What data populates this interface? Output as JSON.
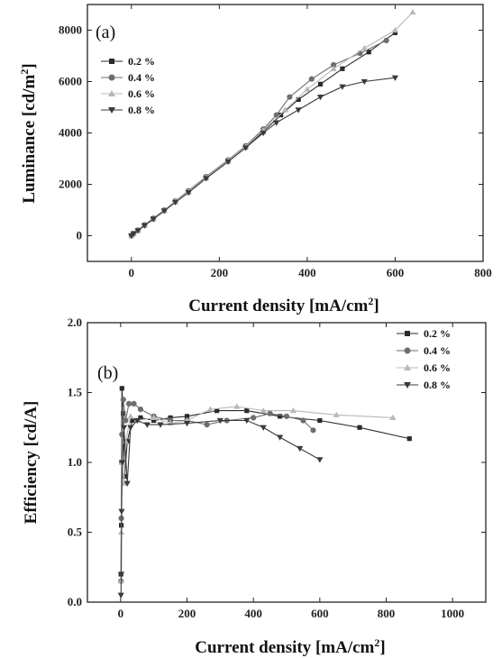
{
  "colors": {
    "0.2 %": "#2a2a2a",
    "0.4 %": "#6e6e6e",
    "0.6 %": "#b8b8b8",
    "0.8 %": "#3a3a3a"
  },
  "markers": {
    "0.2 %": "square",
    "0.4 %": "circle",
    "0.6 %": "triangle-up",
    "0.8 %": "triangle-down"
  },
  "chart_data": [
    {
      "type": "line",
      "panel_label": "(a)",
      "xlabel": "Current density [mA/cm",
      "xlabel_sup": "2",
      "xlabel_end": "]",
      "ylabel": "Luminance [cd/m",
      "ylabel_sup": "2",
      "ylabel_end": "]",
      "xlim": [
        -100,
        800
      ],
      "ylim": [
        -1000,
        9000
      ],
      "xticks": [
        0,
        200,
        400,
        600,
        800
      ],
      "yticks": [
        0,
        2000,
        4000,
        6000,
        8000
      ],
      "xtick_labels": [
        "0",
        "200",
        "400",
        "600",
        "800"
      ],
      "ytick_labels": [
        "0",
        "2000",
        "4000",
        "6000",
        "8000"
      ],
      "legend_position": "top-left",
      "series": [
        {
          "name": "0.2 %",
          "points": [
            [
              0,
              0
            ],
            [
              5,
              80
            ],
            [
              15,
              200
            ],
            [
              30,
              400
            ],
            [
              50,
              650
            ],
            [
              75,
              980
            ],
            [
              100,
              1320
            ],
            [
              130,
              1700
            ],
            [
              170,
              2250
            ],
            [
              220,
              2900
            ],
            [
              260,
              3450
            ],
            [
              300,
              4050
            ],
            [
              340,
              4700
            ],
            [
              380,
              5300
            ],
            [
              430,
              5900
            ],
            [
              480,
              6500
            ],
            [
              540,
              7150
            ],
            [
              600,
              7900
            ]
          ]
        },
        {
          "name": "0.4 %",
          "points": [
            [
              0,
              0
            ],
            [
              5,
              90
            ],
            [
              15,
              220
            ],
            [
              30,
              420
            ],
            [
              50,
              680
            ],
            [
              75,
              1000
            ],
            [
              100,
              1350
            ],
            [
              130,
              1750
            ],
            [
              170,
              2300
            ],
            [
              220,
              2950
            ],
            [
              260,
              3500
            ],
            [
              300,
              4150
            ],
            [
              330,
              4700
            ],
            [
              360,
              5400
            ],
            [
              410,
              6100
            ],
            [
              460,
              6650
            ],
            [
              520,
              7100
            ],
            [
              580,
              7600
            ]
          ]
        },
        {
          "name": "0.6 %",
          "points": [
            [
              0,
              0
            ],
            [
              5,
              90
            ],
            [
              15,
              210
            ],
            [
              30,
              410
            ],
            [
              50,
              660
            ],
            [
              75,
              990
            ],
            [
              100,
              1330
            ],
            [
              130,
              1720
            ],
            [
              170,
              2270
            ],
            [
              220,
              2920
            ],
            [
              260,
              3470
            ],
            [
              300,
              4100
            ],
            [
              350,
              4900
            ],
            [
              400,
              5700
            ],
            [
              460,
              6500
            ],
            [
              530,
              7300
            ],
            [
              600,
              8000
            ],
            [
              640,
              8700
            ]
          ]
        },
        {
          "name": "0.8 %",
          "points": [
            [
              0,
              0
            ],
            [
              5,
              80
            ],
            [
              15,
              200
            ],
            [
              30,
              400
            ],
            [
              50,
              650
            ],
            [
              75,
              970
            ],
            [
              100,
              1300
            ],
            [
              130,
              1680
            ],
            [
              170,
              2230
            ],
            [
              220,
              2880
            ],
            [
              260,
              3420
            ],
            [
              300,
              4000
            ],
            [
              330,
              4400
            ],
            [
              380,
              4900
            ],
            [
              430,
              5400
            ],
            [
              480,
              5800
            ],
            [
              530,
              6000
            ],
            [
              600,
              6150
            ]
          ]
        }
      ]
    },
    {
      "type": "line",
      "panel_label": "(b)",
      "xlabel": "Current density [mA/cm",
      "xlabel_sup": "2",
      "xlabel_end": "]",
      "ylabel": "Efficiency [cd/A]",
      "ylabel_sup": "",
      "ylabel_end": "",
      "xlim": [
        -100,
        1100
      ],
      "ylim": [
        0.0,
        2.0
      ],
      "xticks": [
        0,
        200,
        400,
        600,
        800,
        1000
      ],
      "yticks": [
        0.0,
        0.5,
        1.0,
        1.5,
        2.0
      ],
      "xtick_labels": [
        "0",
        "200",
        "400",
        "600",
        "800",
        "1000"
      ],
      "ytick_labels": [
        "0.0",
        "0.5",
        "1.0",
        "1.5",
        "2.0"
      ],
      "legend_position": "top-right",
      "series": [
        {
          "name": "0.2 %",
          "points": [
            [
              1,
              0.2
            ],
            [
              2,
              0.55
            ],
            [
              3,
              1.0
            ],
            [
              4,
              1.53
            ],
            [
              8,
              1.35
            ],
            [
              12,
              0.9
            ],
            [
              20,
              1.15
            ],
            [
              35,
              1.3
            ],
            [
              60,
              1.32
            ],
            [
              100,
              1.3
            ],
            [
              150,
              1.32
            ],
            [
              200,
              1.33
            ],
            [
              290,
              1.37
            ],
            [
              380,
              1.37
            ],
            [
              480,
              1.33
            ],
            [
              600,
              1.3
            ],
            [
              720,
              1.25
            ],
            [
              870,
              1.17
            ]
          ]
        },
        {
          "name": "0.4 %",
          "points": [
            [
              1,
              0.15
            ],
            [
              2,
              0.6
            ],
            [
              4,
              1.2
            ],
            [
              8,
              1.45
            ],
            [
              15,
              1.3
            ],
            [
              25,
              1.42
            ],
            [
              40,
              1.42
            ],
            [
              60,
              1.38
            ],
            [
              100,
              1.33
            ],
            [
              150,
              1.3
            ],
            [
              200,
              1.3
            ],
            [
              260,
              1.27
            ],
            [
              320,
              1.3
            ],
            [
              400,
              1.32
            ],
            [
              450,
              1.35
            ],
            [
              500,
              1.33
            ],
            [
              550,
              1.3
            ],
            [
              580,
              1.23
            ]
          ]
        },
        {
          "name": "0.6 %",
          "points": [
            [
              1,
              0.15
            ],
            [
              2,
              0.5
            ],
            [
              4,
              1.0
            ],
            [
              10,
              0.85
            ],
            [
              15,
              1.15
            ],
            [
              30,
              1.33
            ],
            [
              50,
              1.3
            ],
            [
              100,
              1.32
            ],
            [
              150,
              1.28
            ],
            [
              200,
              1.3
            ],
            [
              270,
              1.38
            ],
            [
              350,
              1.4
            ],
            [
              430,
              1.37
            ],
            [
              520,
              1.37
            ],
            [
              650,
              1.34
            ],
            [
              820,
              1.32
            ]
          ]
        },
        {
          "name": "0.8 %",
          "points": [
            [
              1,
              0.05
            ],
            [
              2,
              0.2
            ],
            [
              3,
              0.65
            ],
            [
              5,
              1.0
            ],
            [
              10,
              1.25
            ],
            [
              20,
              0.85
            ],
            [
              30,
              1.25
            ],
            [
              50,
              1.3
            ],
            [
              80,
              1.27
            ],
            [
              120,
              1.27
            ],
            [
              200,
              1.28
            ],
            [
              300,
              1.3
            ],
            [
              380,
              1.3
            ],
            [
              430,
              1.25
            ],
            [
              480,
              1.18
            ],
            [
              540,
              1.1
            ],
            [
              600,
              1.02
            ]
          ]
        }
      ]
    }
  ]
}
